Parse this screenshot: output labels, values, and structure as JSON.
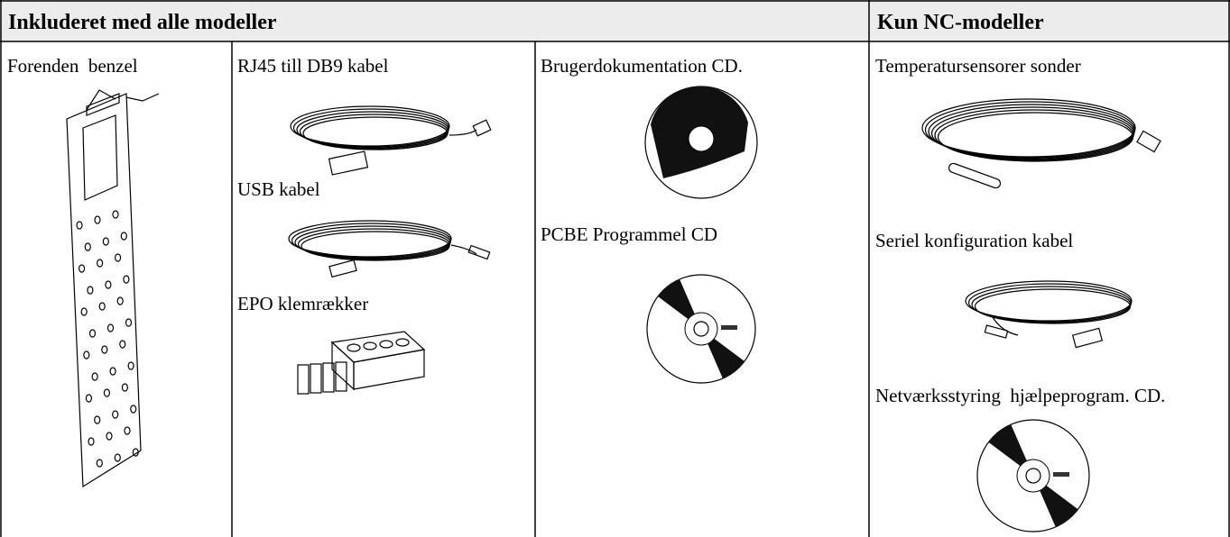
{
  "table": {
    "header": [
      "Inkluderet med alle modeller",
      "Kun NC-modeller"
    ],
    "columns": [
      {
        "items": [
          "Forenden  benzel"
        ]
      },
      {
        "items": [
          "RJ45 till DB9 kabel",
          "USB kabel",
          "EPO klemrækker"
        ]
      },
      {
        "items": [
          "Brugerdokumentation CD.",
          "PCBE Programmel CD"
        ]
      },
      {
        "items": [
          "Temperatursensorer sonder",
          "Seriel konfiguration kabel",
          "Netværksstyring  hjælpeprogram. CD."
        ]
      }
    ]
  }
}
